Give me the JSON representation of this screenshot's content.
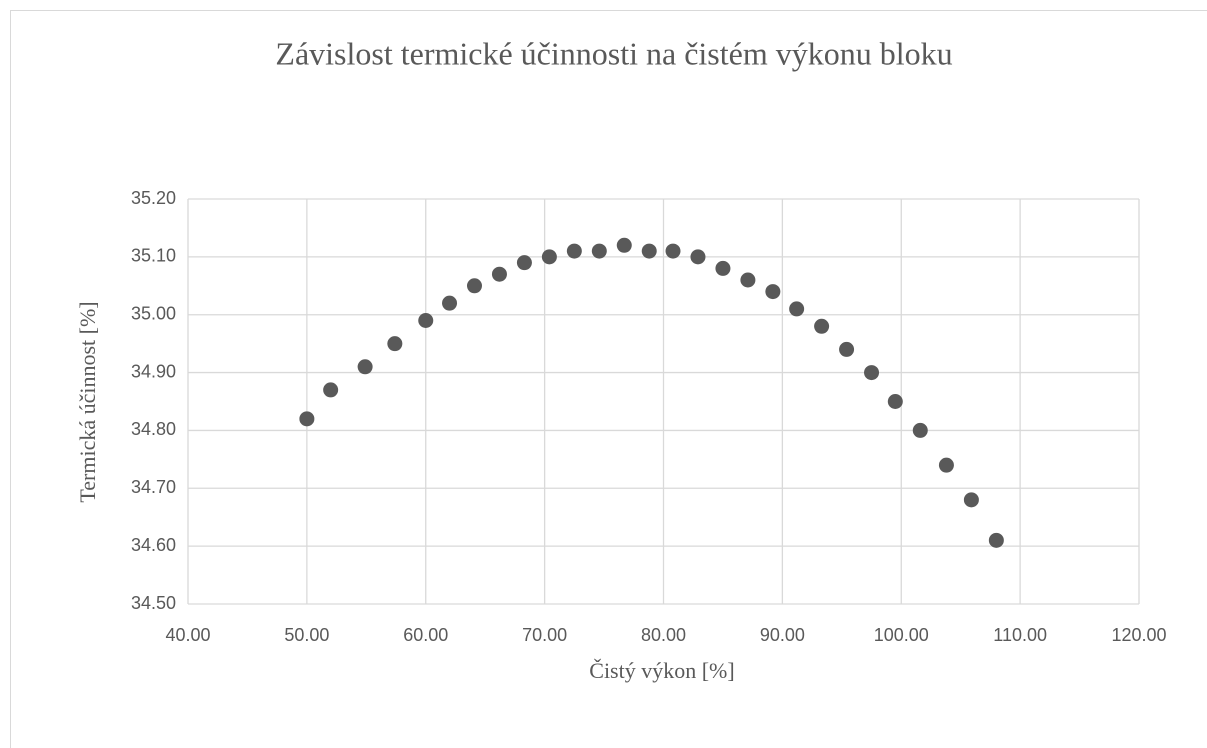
{
  "chart_data": {
    "type": "scatter",
    "title": "Závislost termické účinnosti na čistém výkonu bloku",
    "xlabel": "Čistý výkon [%]",
    "ylabel": "Termická účinnost [%]",
    "color": "#595959",
    "grid": true,
    "x": [
      50.0,
      52.0,
      54.9,
      57.4,
      60.0,
      62.0,
      64.1,
      66.2,
      68.3,
      70.4,
      72.5,
      74.6,
      76.7,
      78.8,
      80.8,
      82.9,
      85.0,
      87.1,
      89.2,
      91.2,
      93.3,
      95.4,
      97.5,
      99.5,
      101.6,
      103.8,
      105.9,
      108.0
    ],
    "values": [
      34.82,
      34.87,
      34.91,
      34.95,
      34.99,
      35.02,
      35.05,
      35.07,
      35.09,
      35.1,
      35.11,
      35.11,
      35.12,
      35.11,
      35.11,
      35.1,
      35.08,
      35.06,
      35.04,
      35.01,
      34.98,
      34.94,
      34.9,
      34.85,
      34.8,
      34.74,
      34.68,
      34.61
    ],
    "xlim": [
      40,
      120
    ],
    "xticks": [
      {
        "value": 40,
        "label": "40.00"
      },
      {
        "value": 50,
        "label": "50.00"
      },
      {
        "value": 60,
        "label": "60.00"
      },
      {
        "value": 70,
        "label": "70.00"
      },
      {
        "value": 80,
        "label": "80.00"
      },
      {
        "value": 90,
        "label": "90.00"
      },
      {
        "value": 100,
        "label": "100.00"
      },
      {
        "value": 110,
        "label": "110.00"
      },
      {
        "value": 120,
        "label": "120.00"
      }
    ],
    "ylim": [
      34.5,
      35.2
    ],
    "yticks": [
      {
        "value": 34.5,
        "label": "34.50"
      },
      {
        "value": 34.6,
        "label": "34.60"
      },
      {
        "value": 34.7,
        "label": "34.70"
      },
      {
        "value": 34.8,
        "label": "34.80"
      },
      {
        "value": 34.9,
        "label": "34.90"
      },
      {
        "value": 35.0,
        "label": "35.00"
      },
      {
        "value": 35.1,
        "label": "35.10"
      },
      {
        "value": 35.2,
        "label": "35.20"
      }
    ]
  }
}
